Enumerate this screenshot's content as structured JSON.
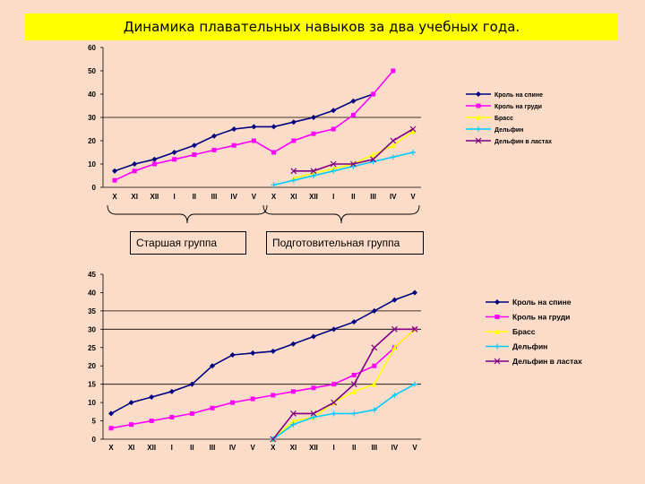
{
  "page_title": "Динамика плавательных навыков за два учебных года.",
  "group_labels": {
    "senior": "Старшая группа",
    "preparatory": "Подготовительная группа"
  },
  "colors": {
    "background": "#fbdcc8",
    "title_background": "#ffff00",
    "kroll_spina": "#000080",
    "kroll_grudi": "#ff00ff",
    "brass": "#ffff00",
    "delfin": "#00ccff",
    "delfin_lasty": "#800080"
  },
  "chart_data": [
    {
      "type": "line",
      "title": "",
      "xlabel": "",
      "ylabel": "",
      "ylim": [
        0,
        60
      ],
      "yticks": [
        0,
        10,
        20,
        30,
        40,
        50,
        60
      ],
      "grid": "single line at 30",
      "legend_position": "right",
      "categories": [
        "X",
        "XI",
        "XII",
        "I",
        "II",
        "III",
        "IV",
        "V",
        "X",
        "XI",
        "XII",
        "I",
        "II",
        "III",
        "IV",
        "V"
      ],
      "series": [
        {
          "name": "Кроль на спине",
          "color_key": "kroll_spina",
          "marker": "diamond",
          "values": [
            7,
            10,
            12,
            15,
            18,
            22,
            25,
            26,
            26,
            28,
            30,
            33,
            37,
            40,
            null,
            null
          ]
        },
        {
          "name": "Кроль на груди",
          "color_key": "kroll_grudi",
          "marker": "square",
          "values": [
            3,
            7,
            10,
            12,
            14,
            16,
            18,
            20,
            15,
            20,
            23,
            25,
            31,
            40,
            50,
            null
          ]
        },
        {
          "name": "Брасс",
          "color_key": "brass",
          "marker": "triangle",
          "values": [
            null,
            null,
            null,
            null,
            null,
            null,
            null,
            null,
            null,
            4,
            6,
            8,
            10,
            14,
            18,
            24
          ]
        },
        {
          "name": "Дельфин",
          "color_key": "delfin",
          "marker": "cross",
          "values": [
            null,
            null,
            null,
            null,
            null,
            null,
            null,
            null,
            1,
            3,
            5,
            7,
            9,
            11,
            13,
            15
          ]
        },
        {
          "name": "Дельфин в ластах",
          "color_key": "delfin_lasty",
          "marker": "x",
          "values": [
            null,
            null,
            null,
            null,
            null,
            null,
            null,
            null,
            null,
            7,
            7,
            10,
            10,
            12,
            20,
            25
          ]
        }
      ]
    },
    {
      "type": "line",
      "title": "",
      "xlabel": "",
      "ylabel": "",
      "ylim": [
        0,
        45
      ],
      "yticks": [
        0,
        5,
        10,
        15,
        20,
        25,
        30,
        35,
        40,
        45
      ],
      "grid": "lines at 15, 30, 35",
      "legend_position": "right",
      "categories": [
        "X",
        "XI",
        "XII",
        "I",
        "II",
        "III",
        "IV",
        "V",
        "X",
        "XI",
        "XII",
        "I",
        "II",
        "III",
        "IV",
        "V"
      ],
      "series": [
        {
          "name": "Кроль на спине",
          "color_key": "kroll_spina",
          "marker": "diamond",
          "values": [
            7,
            10,
            11.5,
            13,
            15,
            20,
            23,
            23.5,
            24,
            26,
            28,
            30,
            32,
            35,
            38,
            40
          ]
        },
        {
          "name": "Кроль на груди",
          "color_key": "kroll_grudi",
          "marker": "square",
          "values": [
            3,
            4,
            5,
            6,
            7,
            8.5,
            10,
            11,
            12,
            13,
            14,
            15,
            17.5,
            20,
            25,
            30
          ]
        },
        {
          "name": "Брасс",
          "color_key": "brass",
          "marker": "triangle",
          "values": [
            null,
            null,
            null,
            null,
            null,
            null,
            null,
            null,
            0,
            5,
            6,
            10,
            13,
            15,
            25,
            30
          ]
        },
        {
          "name": "Дельфин",
          "color_key": "delfin",
          "marker": "cross",
          "values": [
            null,
            null,
            null,
            null,
            null,
            null,
            null,
            null,
            0,
            4,
            6,
            7,
            7,
            8,
            12,
            15
          ]
        },
        {
          "name": "Дельфин в ластах",
          "color_key": "delfin_lasty",
          "marker": "x",
          "values": [
            null,
            null,
            null,
            null,
            null,
            null,
            null,
            null,
            0,
            7,
            7,
            10,
            15,
            25,
            30,
            30
          ]
        }
      ]
    }
  ]
}
